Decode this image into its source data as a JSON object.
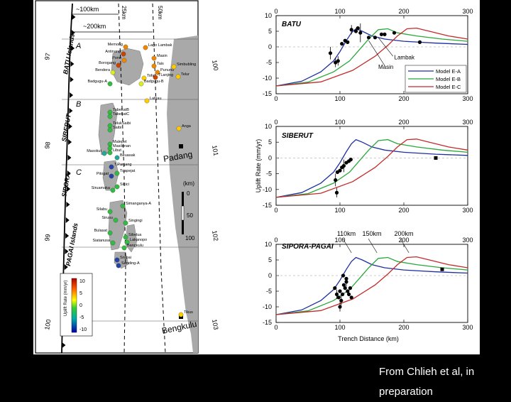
{
  "caption": "From Chlieh et al, in preparation",
  "map": {
    "scale_labels": [
      "~100km",
      "~200km",
      "25km",
      "50km"
    ],
    "regions": [
      {
        "letter": "A",
        "name": "BATU Islands"
      },
      {
        "letter": "B",
        "name": "SIBERUT"
      },
      {
        "letter": "C",
        "name": "SIPORA"
      },
      {
        "letter": "",
        "name": "PAGAI Islands"
      }
    ],
    "lat_labels": [
      "97",
      "98",
      "99",
      "100"
    ],
    "lon_labels": [
      "100",
      "101",
      "102",
      "103"
    ],
    "cities": [
      "Padang",
      "Bengkulu"
    ],
    "scale_bar": {
      "unit": "(km)",
      "ticks": [
        "0",
        "50",
        "100"
      ]
    },
    "colorbar": {
      "label": "Uplift Rate (mm/yr)",
      "ticks": [
        "10",
        "5",
        "0",
        "-5",
        "-10"
      ]
    },
    "stations": [
      {
        "name": "Memong",
        "value": 6
      },
      {
        "name": "Antinang",
        "value": 7
      },
      {
        "name": "Lago Lambak",
        "value": 6
      },
      {
        "name": "Pono",
        "value": 5
      },
      {
        "name": "Masin",
        "value": 5
      },
      {
        "name": "Borogang",
        "value": 7
      },
      {
        "name": "Tais",
        "value": 6
      },
      {
        "name": "Bendera",
        "value": 2
      },
      {
        "name": "Pununu",
        "value": 6
      },
      {
        "name": "Simbubling",
        "value": 3
      },
      {
        "name": "TLanjing",
        "value": 8
      },
      {
        "name": "Tofa",
        "value": 3
      },
      {
        "name": "Badgugu-A",
        "value": -2
      },
      {
        "name": "Badgugu-B",
        "value": 1
      },
      {
        "name": "Telur",
        "value": 4
      },
      {
        "name": "Labjau",
        "value": 3
      },
      {
        "name": "TabekatB",
        "value": -1
      },
      {
        "name": "TabekatC",
        "value": -1
      },
      {
        "name": "TelukSaibi",
        "value": -1
      },
      {
        "name": "Saibi",
        "value": -1
      },
      {
        "name": "Anga",
        "value": 3
      },
      {
        "name": "Malepet",
        "value": -1
      },
      {
        "name": "Masilonan",
        "value": -1
      },
      {
        "name": "Libut",
        "value": -1
      },
      {
        "name": "Masokut",
        "value": -3
      },
      {
        "name": "Beuasak",
        "value": -3
      },
      {
        "name": "T.Panjang",
        "value": -4
      },
      {
        "name": "Tuapejat",
        "value": -1
      },
      {
        "name": "Pitogat",
        "value": -4
      },
      {
        "name": "Sikici",
        "value": -2
      },
      {
        "name": "Siruamaka",
        "value": -2
      },
      {
        "name": "Simanganya-A",
        "value": -2
      },
      {
        "name": "Silabu",
        "value": -2
      },
      {
        "name": "Sirusu",
        "value": -1
      },
      {
        "name": "Singingi",
        "value": -1
      },
      {
        "name": "Bulasat",
        "value": -1
      },
      {
        "name": "Siatanusa",
        "value": -1
      },
      {
        "name": "Sibelua",
        "value": -1
      },
      {
        "name": "Lakanopo",
        "value": -1
      },
      {
        "name": "Bangkulu",
        "value": -1
      },
      {
        "name": "Srupai",
        "value": -4
      },
      {
        "name": "Sanding-A",
        "value": -4
      },
      {
        "name": "Tikus",
        "value": 4
      }
    ]
  },
  "chart_data": [
    {
      "type": "line",
      "title": "BATU",
      "xlabel": "",
      "ylabel": "",
      "xlim": [
        0,
        300
      ],
      "ylim": [
        -15,
        10
      ],
      "xticks": [
        0,
        100,
        200,
        300
      ],
      "yticks": [
        10,
        5,
        0,
        -5,
        -10,
        -15
      ],
      "series": [
        {
          "name": "Model E-A",
          "color": "#1f2fa0",
          "x": [
            0,
            40,
            70,
            90,
            100,
            110,
            118,
            125,
            135,
            150,
            170,
            200,
            250,
            300
          ],
          "y": [
            -12.5,
            -11,
            -8,
            -4.5,
            -1.5,
            2,
            4.5,
            5.8,
            5,
            3.5,
            2.5,
            1.8,
            1.2,
            0.8
          ]
        },
        {
          "name": "Model E-B",
          "color": "#28a83c",
          "x": [
            0,
            50,
            90,
            115,
            130,
            145,
            160,
            175,
            190,
            220,
            260,
            300
          ],
          "y": [
            -12.5,
            -11.3,
            -8,
            -4.5,
            -1,
            2.5,
            5.5,
            5.8,
            4.5,
            3.5,
            2.5,
            1.8
          ]
        },
        {
          "name": "Model E-C",
          "color": "#c42a2a",
          "x": [
            0,
            70,
            120,
            155,
            175,
            190,
            205,
            220,
            240,
            270,
            300
          ],
          "y": [
            -12.5,
            -11.2,
            -7.5,
            -3,
            0.5,
            3.5,
            5.8,
            6,
            5,
            3.5,
            2.5
          ]
        }
      ],
      "observations": {
        "x": [
          85,
          93,
          97,
          103,
          108,
          112,
          118,
          125,
          132,
          145,
          155,
          165,
          170,
          185,
          225,
          128
        ],
        "y": [
          -2,
          -5,
          -4.5,
          1,
          2,
          1.5,
          5.5,
          5,
          4.5,
          3,
          3,
          4,
          4,
          4.5,
          1.5,
          6
        ],
        "err": [
          2,
          1.5,
          1.5,
          0,
          0,
          0,
          1.5,
          0,
          3,
          0,
          0,
          0,
          0,
          0,
          0,
          0
        ]
      },
      "annotations": [
        "Lambak",
        "Masin"
      ]
    },
    {
      "type": "line",
      "title": "SIBERUT",
      "xlabel": "",
      "ylabel": "Uplift Rate (mm/yr)",
      "xlim": [
        0,
        300
      ],
      "ylim": [
        -15,
        10
      ],
      "xticks": [
        0,
        100,
        200,
        300
      ],
      "yticks": [
        10,
        5,
        0,
        -5,
        -10,
        -15
      ],
      "series": [
        {
          "name": "Model E-A",
          "color": "#1f2fa0",
          "x": [
            0,
            40,
            70,
            90,
            100,
            110,
            118,
            125,
            135,
            150,
            170,
            200,
            250,
            300
          ],
          "y": [
            -12.5,
            -11,
            -8,
            -4.5,
            -1.5,
            2,
            4.5,
            5.8,
            5,
            3.5,
            2.5,
            1.8,
            1.2,
            0.8
          ]
        },
        {
          "name": "Model E-B",
          "color": "#28a83c",
          "x": [
            0,
            50,
            90,
            115,
            130,
            145,
            160,
            175,
            190,
            220,
            260,
            300
          ],
          "y": [
            -12.5,
            -11.3,
            -8,
            -4.5,
            -1,
            2.5,
            5.5,
            5.8,
            4.5,
            3.5,
            2.5,
            1.8
          ]
        },
        {
          "name": "Model E-C",
          "color": "#c42a2a",
          "x": [
            0,
            70,
            120,
            155,
            175,
            190,
            205,
            220,
            240,
            270,
            300
          ],
          "y": [
            -12.5,
            -11.2,
            -7.5,
            -3,
            0.5,
            3.5,
            5.8,
            6,
            5,
            3.5,
            2.5
          ]
        }
      ],
      "observations": {
        "x": [
          93,
          96,
          100,
          103,
          106,
          110,
          114,
          117,
          250,
          95
        ],
        "y": [
          -7,
          -4.5,
          -4,
          -3,
          -2.5,
          -1.5,
          -1,
          -0.5,
          0,
          -11
        ],
        "err": [
          2,
          0,
          0,
          0,
          2,
          0,
          0,
          0,
          0,
          1.5
        ]
      }
    },
    {
      "type": "line",
      "title": "SIPORA-PAGAI",
      "xlabel": "Trench Distance (km)",
      "ylabel": "",
      "xlim": [
        0,
        300
      ],
      "ylim": [
        -15,
        10
      ],
      "xticks": [
        0,
        100,
        200,
        300
      ],
      "yticks": [
        10,
        5,
        0,
        -5,
        -10,
        -15
      ],
      "series": [
        {
          "name": "Model E-A",
          "color": "#1f2fa0",
          "x": [
            0,
            40,
            70,
            90,
            100,
            110,
            118,
            125,
            135,
            150,
            170,
            200,
            250,
            300
          ],
          "y": [
            -12.5,
            -11,
            -8,
            -4.5,
            -1.5,
            2,
            4.5,
            5.8,
            5,
            3.5,
            2.5,
            1.8,
            1.2,
            0.8
          ]
        },
        {
          "name": "Model E-B",
          "color": "#28a83c",
          "x": [
            0,
            50,
            90,
            115,
            130,
            145,
            160,
            175,
            190,
            220,
            260,
            300
          ],
          "y": [
            -12.5,
            -11.3,
            -8,
            -4.5,
            -1,
            2.5,
            5.5,
            5.8,
            4.5,
            3.5,
            2.5,
            1.8
          ]
        },
        {
          "name": "Model E-C",
          "color": "#c42a2a",
          "x": [
            0,
            70,
            120,
            155,
            175,
            190,
            205,
            220,
            240,
            270,
            300
          ],
          "y": [
            -12.5,
            -11.2,
            -7.5,
            -3,
            0.5,
            3.5,
            5.8,
            6,
            5,
            3.5,
            2.5
          ]
        }
      ],
      "observations": {
        "x": [
          92,
          95,
          98,
          100,
          102,
          104,
          106,
          108,
          110,
          112,
          114,
          116,
          118,
          100,
          110,
          105,
          260
        ],
        "y": [
          -4,
          -6,
          -7,
          -5,
          -8,
          -6,
          -3,
          -4,
          -2,
          -5,
          -6,
          -4,
          -7,
          -10,
          -1,
          0,
          2
        ],
        "err": [
          0,
          1.5,
          0,
          0,
          1.5,
          0,
          0,
          0,
          1.5,
          0,
          0,
          0,
          0,
          1.5,
          0,
          0,
          0
        ]
      },
      "top_annotations": [
        "110km",
        "150km",
        "200km"
      ]
    }
  ]
}
